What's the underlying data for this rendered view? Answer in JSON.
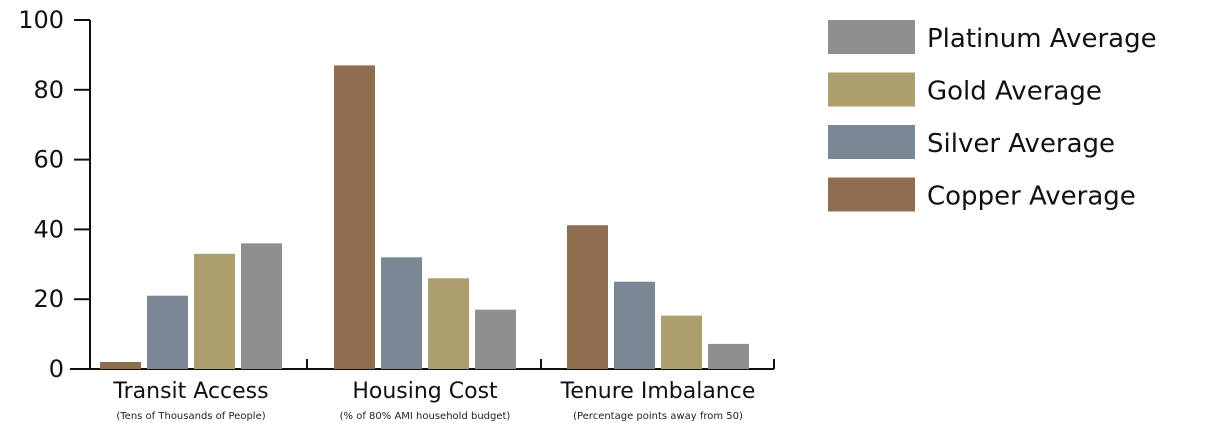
{
  "chart_data": {
    "type": "bar",
    "title": "",
    "xlabel": "",
    "ylabel": "",
    "ylim": [
      0,
      100
    ],
    "yticks": [
      0,
      20,
      40,
      60,
      80,
      100
    ],
    "grid": false,
    "legend_position": "right",
    "categories": [
      "Transit Access",
      "Housing Cost",
      "Tenure Imbalance"
    ],
    "category_subtitles": [
      "(Tens of Thousands of People)",
      "(% of 80% AMI household budget)",
      "(Percentage points away from 50)"
    ],
    "series": [
      {
        "name": "Copper Average",
        "color": "#8f6d4f",
        "values": [
          2,
          87,
          41.2
        ]
      },
      {
        "name": "Silver Average",
        "color": "#7b8795",
        "values": [
          21,
          32,
          25
        ]
      },
      {
        "name": "Gold Average",
        "color": "#ac9f6d",
        "values": [
          33,
          26,
          15.3
        ]
      },
      {
        "name": "Platinum Average",
        "color": "#8f8f8f",
        "values": [
          36,
          17,
          7.2
        ]
      }
    ],
    "legend_order": [
      "Platinum Average",
      "Gold Average",
      "Silver Average",
      "Copper Average"
    ]
  }
}
